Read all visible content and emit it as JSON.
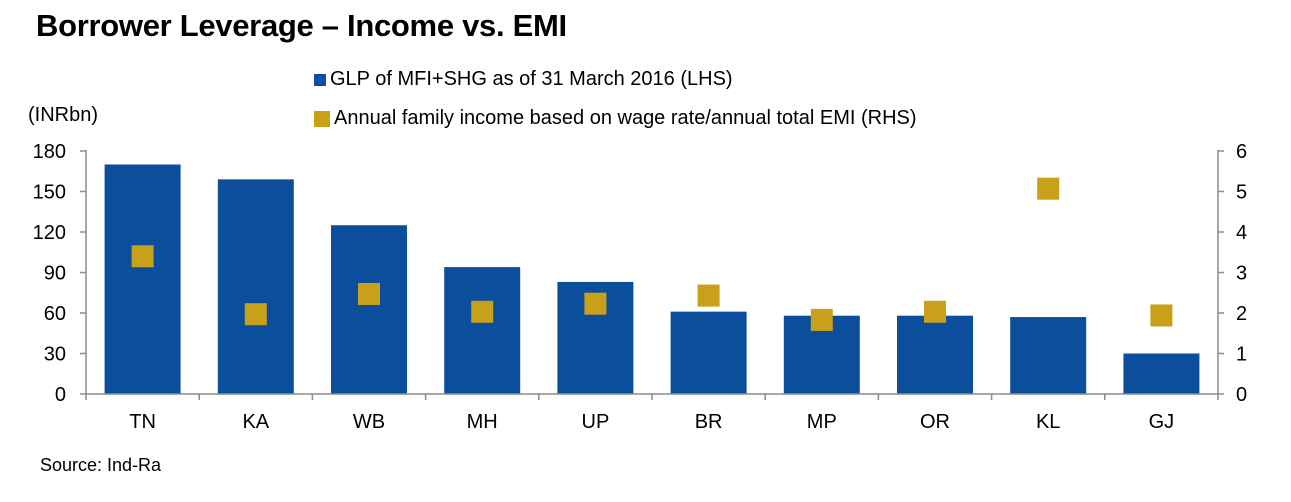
{
  "title": "Borrower Leverage – Income vs. EMI",
  "y_unit": "(INRbn)",
  "source": "Source: Ind-Ra",
  "colors": {
    "bars": "#0b4f9c",
    "markers": "#c9a01a",
    "axis": "#8c8c8c"
  },
  "chart_data": {
    "type": "bar",
    "categories": [
      "TN",
      "KA",
      "WB",
      "MH",
      "UP",
      "BR",
      "MP",
      "OR",
      "KL",
      "GJ"
    ],
    "series": [
      {
        "name": "GLP of MFI+SHG as of 31 March 2016 (LHS)",
        "kind": "bar",
        "axis": "left",
        "values": [
          170,
          159,
          125,
          94,
          83,
          61,
          58,
          58,
          57,
          30
        ]
      },
      {
        "name": "Annual family income based on wage rate/annual total EMI (RHS)",
        "kind": "marker",
        "axis": "right",
        "values": [
          3.4,
          1.97,
          2.47,
          2.03,
          2.23,
          2.43,
          1.83,
          2.03,
          5.07,
          1.94
        ]
      }
    ],
    "y_left": {
      "min": 0,
      "max": 180,
      "ticks": [
        "0",
        "30",
        "60",
        "90",
        "120",
        "150",
        "180"
      ]
    },
    "y_right": {
      "min": 0,
      "max": 6,
      "ticks": [
        "0",
        "1",
        "2",
        "3",
        "4",
        "5",
        "6"
      ]
    },
    "legend_position": "top-center"
  }
}
